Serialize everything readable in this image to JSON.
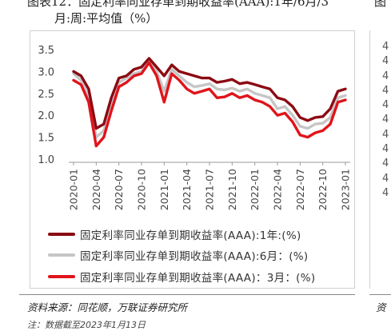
{
  "title": {
    "line1": "图表12：固定利率同业存单到期收益率(AAA):1年/6月/3",
    "line2": "月:周:平均值（%）",
    "right_partial": "图"
  },
  "source": "资料来源：同花顺，万联证券研究所",
  "source_right": "资",
  "note": "注：数据截至2023年1月13日",
  "right_panel_ticks": [
    "4",
    "4",
    "4",
    "4",
    "4",
    "4",
    "4",
    "4",
    "4",
    "4",
    "4"
  ],
  "colors": {
    "one_year": "#8b0a12",
    "six_month": "#c6c6c6",
    "three_month": "#e0141b"
  },
  "chart_data": {
    "type": "line",
    "title": "",
    "xlabel": "",
    "ylabel": "",
    "ylim": [
      1.0,
      3.5
    ],
    "yticks": [
      "1.0",
      "1.5",
      "2.0",
      "2.5",
      "3.0",
      "3.5"
    ],
    "xticks": [
      "2020-01",
      "2020-04",
      "2020-07",
      "2020-10",
      "2021-01",
      "2021-04",
      "2021-07",
      "2021-10",
      "2022-01",
      "2022-04",
      "2022-07",
      "2022-10",
      "2023-01"
    ],
    "x": [
      "2020-01",
      "2020-02",
      "2020-03",
      "2020-04",
      "2020-05",
      "2020-06",
      "2020-07",
      "2020-08",
      "2020-09",
      "2020-10",
      "2020-11",
      "2020-12",
      "2021-01",
      "2021-02",
      "2021-03",
      "2021-04",
      "2021-05",
      "2021-06",
      "2021-07",
      "2021-08",
      "2021-09",
      "2021-10",
      "2021-11",
      "2021-12",
      "2022-01",
      "2022-02",
      "2022-03",
      "2022-04",
      "2022-05",
      "2022-06",
      "2022-07",
      "2022-08",
      "2022-09",
      "2022-10",
      "2022-11",
      "2022-12",
      "2023-01"
    ],
    "series": [
      {
        "name": "固定利率同业存单到期收益率(AAA):1年:(%)",
        "values": [
          3.0,
          2.9,
          2.6,
          1.7,
          1.8,
          2.4,
          2.85,
          2.9,
          3.05,
          3.1,
          3.3,
          3.1,
          2.9,
          3.15,
          3.0,
          2.95,
          2.9,
          2.85,
          2.85,
          2.75,
          2.78,
          2.82,
          2.72,
          2.75,
          2.7,
          2.65,
          2.6,
          2.4,
          2.35,
          2.2,
          1.95,
          1.88,
          1.95,
          1.97,
          2.15,
          2.55,
          2.6
        ]
      },
      {
        "name": "固定利率同业存单到期收益率(AAA):6月：(%)",
        "values": [
          2.95,
          2.8,
          2.45,
          1.5,
          1.65,
          2.25,
          2.75,
          2.85,
          2.95,
          3.0,
          3.25,
          3.0,
          2.55,
          3.05,
          2.9,
          2.75,
          2.65,
          2.68,
          2.72,
          2.6,
          2.58,
          2.62,
          2.55,
          2.6,
          2.5,
          2.45,
          2.4,
          2.15,
          2.2,
          2.0,
          1.75,
          1.7,
          1.8,
          1.82,
          1.95,
          2.4,
          2.45
        ]
      },
      {
        "name": "固定利率同业存单到期收益率(AAA)：3月：(%)",
        "values": [
          2.8,
          2.7,
          2.3,
          1.3,
          1.5,
          2.1,
          2.65,
          2.75,
          2.9,
          2.95,
          3.2,
          2.9,
          2.3,
          2.95,
          2.8,
          2.6,
          2.5,
          2.55,
          2.6,
          2.4,
          2.42,
          2.5,
          2.4,
          2.45,
          2.35,
          2.3,
          2.2,
          2.0,
          2.05,
          1.85,
          1.55,
          1.5,
          1.6,
          1.65,
          1.8,
          2.3,
          2.35
        ]
      }
    ],
    "legend_position": "bottom",
    "grid": false
  }
}
